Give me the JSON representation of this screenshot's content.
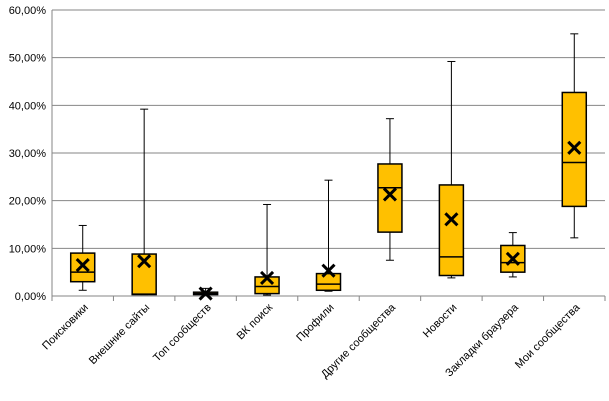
{
  "chart_data": {
    "type": "box",
    "title": "",
    "xlabel": "",
    "ylabel": "",
    "ylim": [
      0,
      0.6
    ],
    "y_ticks": [
      0,
      0.1,
      0.2,
      0.3,
      0.4,
      0.5,
      0.6
    ],
    "y_tick_labels": [
      "0,00%",
      "10,00%",
      "20,00%",
      "30,00%",
      "40,00%",
      "50,00%",
      "60,00%"
    ],
    "grid": "horizontal",
    "legend": "none",
    "colors": {
      "box_fill": "#FFC000",
      "stroke": "#000000",
      "grid": "#868686"
    },
    "categories": [
      "Поисковики",
      "Внешние сайты",
      "Топ сообществ",
      "ВК поиск",
      "Профили",
      "Другие сообщества",
      "Новости",
      "Закладки браузера",
      "Мои сообщества"
    ],
    "boxes": [
      {
        "min": 0.012,
        "q1": 0.03,
        "median": 0.05,
        "q3": 0.09,
        "max": 0.148,
        "mean": 0.065
      },
      {
        "min": 0.003,
        "q1": 0.003,
        "median": 0.004,
        "q3": 0.088,
        "max": 0.392,
        "mean": 0.073
      },
      {
        "min": 0.002,
        "q1": 0.003,
        "median": 0.005,
        "q3": 0.008,
        "max": 0.016,
        "mean": 0.005
      },
      {
        "min": 0.002,
        "q1": 0.005,
        "median": 0.02,
        "q3": 0.04,
        "max": 0.192,
        "mean": 0.038
      },
      {
        "min": 0.01,
        "q1": 0.012,
        "median": 0.025,
        "q3": 0.047,
        "max": 0.243,
        "mean": 0.053
      },
      {
        "min": 0.075,
        "q1": 0.134,
        "median": 0.227,
        "q3": 0.277,
        "max": 0.372,
        "mean": 0.213
      },
      {
        "min": 0.038,
        "q1": 0.043,
        "median": 0.082,
        "q3": 0.233,
        "max": 0.492,
        "mean": 0.161
      },
      {
        "min": 0.04,
        "q1": 0.05,
        "median": 0.07,
        "q3": 0.106,
        "max": 0.133,
        "mean": 0.078
      },
      {
        "min": 0.122,
        "q1": 0.188,
        "median": 0.28,
        "q3": 0.427,
        "max": 0.55,
        "mean": 0.311
      }
    ]
  }
}
